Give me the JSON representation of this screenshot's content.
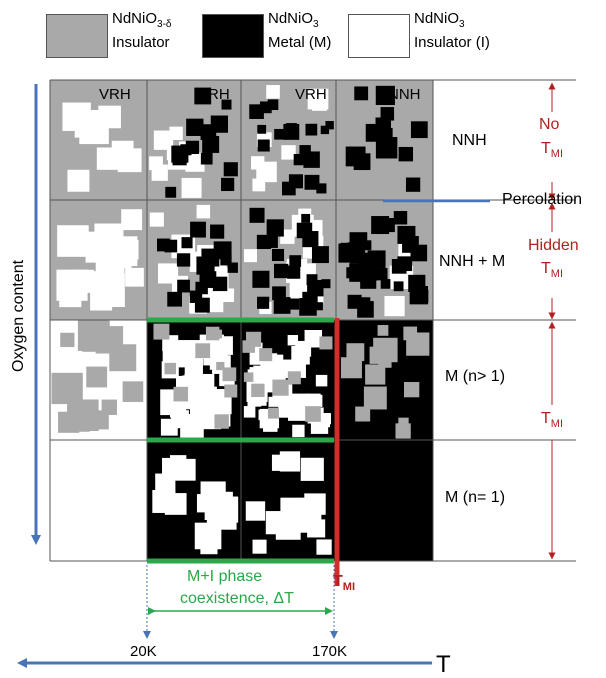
{
  "legend": [
    {
      "name_main": "NdNiO",
      "name_sub": "3-δ",
      "desc": "Insulator",
      "color": "#a9a9a9"
    },
    {
      "name_main": "NdNiO",
      "name_sub": "3",
      "desc": "Metal (M)",
      "color": "#000000"
    },
    {
      "name_main": "NdNiO",
      "name_sub": "3",
      "desc": "Insulator (I)",
      "color": "#ffffff"
    }
  ],
  "y_axis_label": "Oxygen content",
  "x_axis_label": "T",
  "cell_labels": [
    "VRH",
    "VRH",
    "VRH",
    "NNH"
  ],
  "row_labels": [
    "NNH",
    "NNH + M",
    "M (n> 1)",
    "M (n= 1)"
  ],
  "percolation_label": "Percolation",
  "right_annotations": {
    "no": "No",
    "no_t": "T",
    "no_sub": "MI",
    "hidden": "Hidden",
    "hidden_t": "T",
    "hidden_sub": "MI",
    "tmi": "T",
    "tmi_sub": "MI"
  },
  "tmi_marker": {
    "main": "T",
    "sub": "MI"
  },
  "coexistence": {
    "line1": "M+I phase",
    "line2": "coexistence,  ΔT"
  },
  "ticks": [
    "20K",
    "170K"
  ],
  "colors": {
    "gray": "#a9a9a9",
    "blue": "#4a74b8",
    "green": "#2aa84a",
    "red": "#d42b2b",
    "darkred": "#b32020"
  }
}
